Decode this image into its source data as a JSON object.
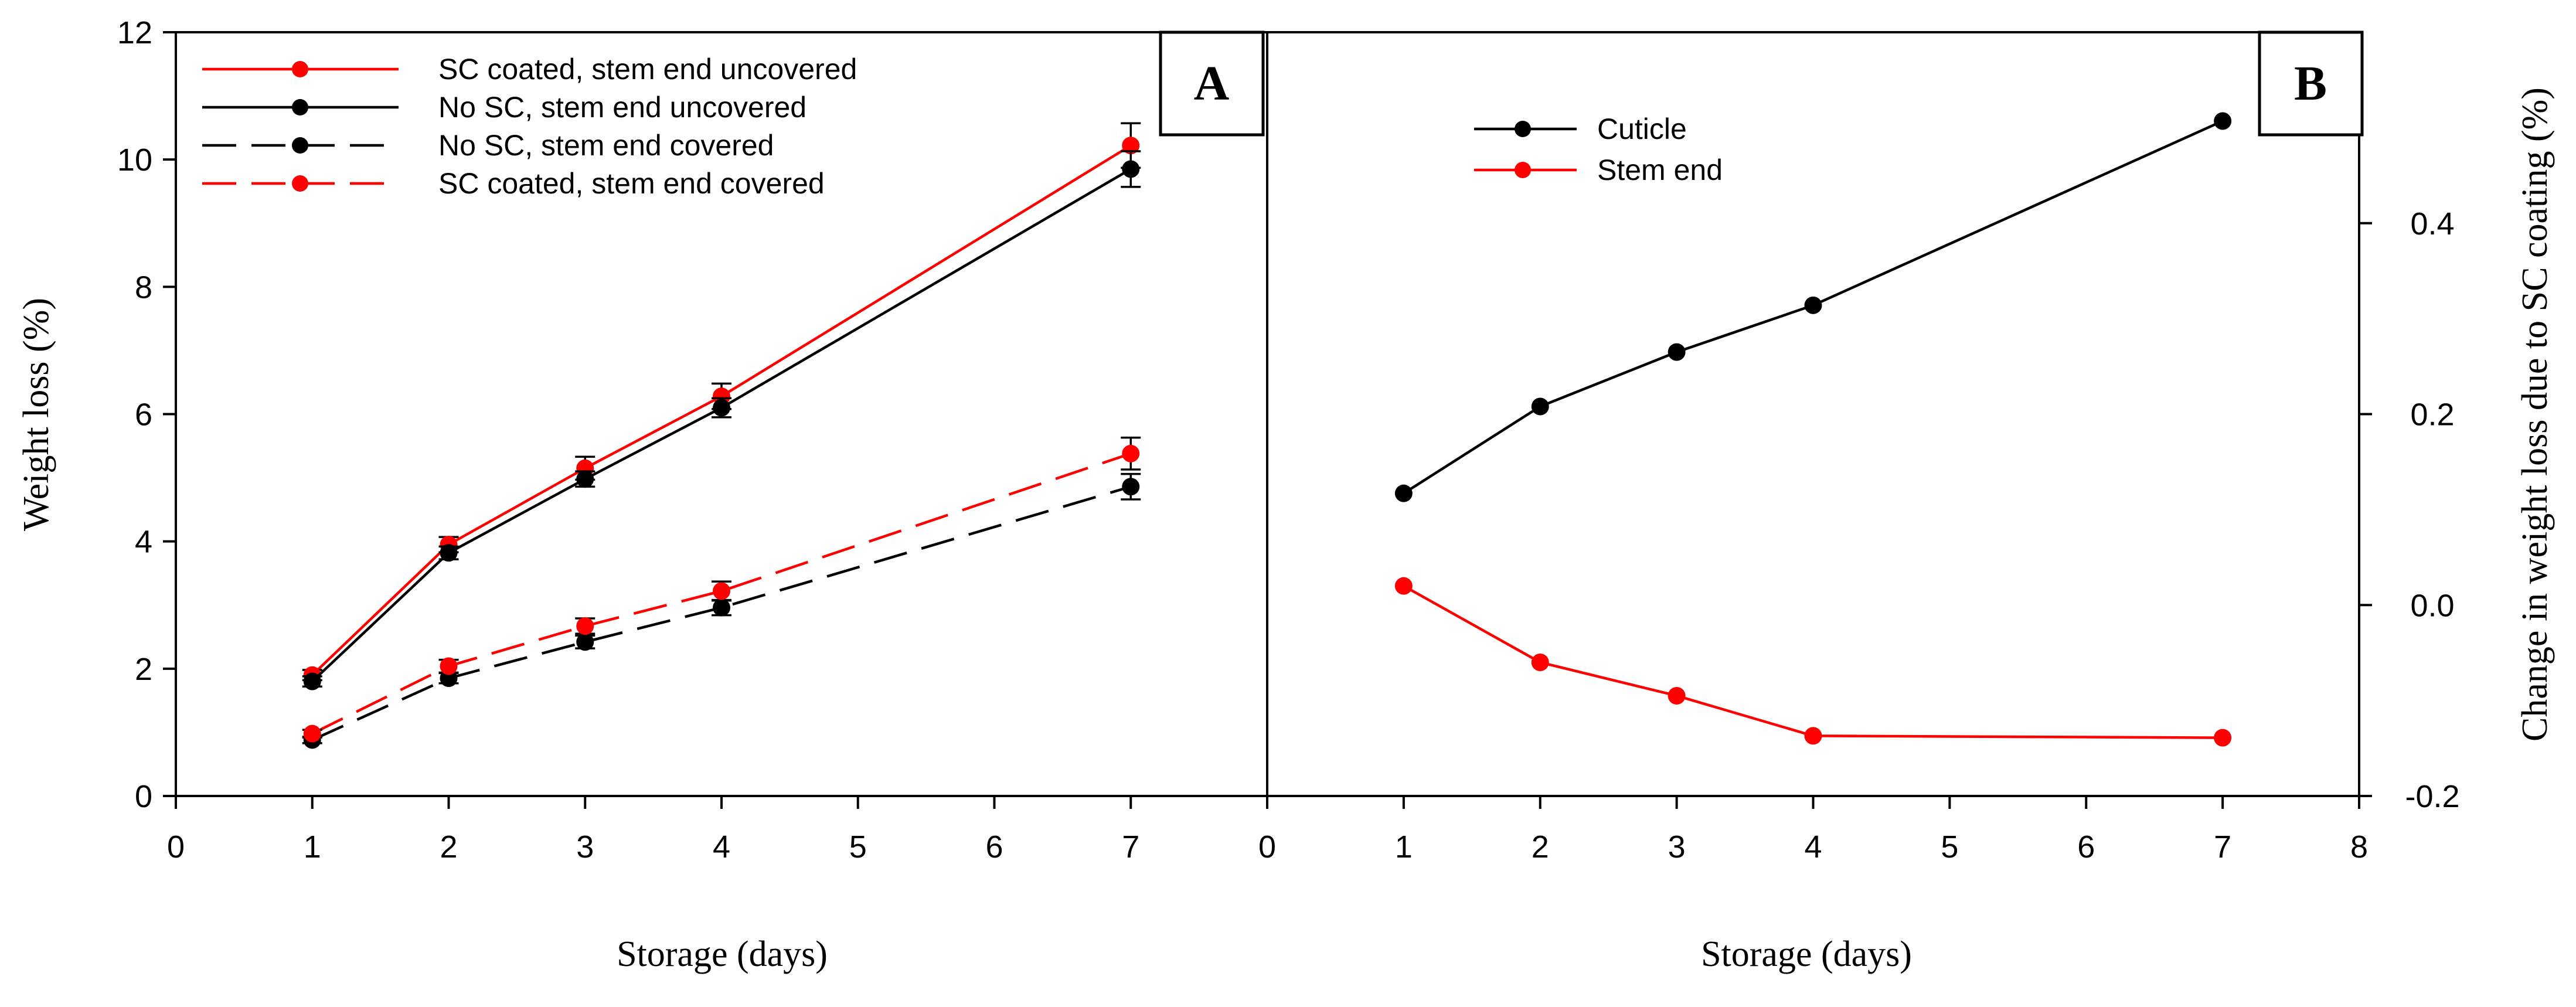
{
  "chart_data": [
    {
      "panel": "A",
      "type": "line",
      "xlabel": "Storage (days)",
      "ylabel": "Weight loss (%)",
      "xlim": [
        0,
        8
      ],
      "ylim": [
        0,
        12
      ],
      "x_ticks": [
        "0",
        "1",
        "2",
        "3",
        "4",
        "5",
        "6",
        "7"
      ],
      "y_ticks": [
        "0",
        "2",
        "4",
        "6",
        "8",
        "10",
        "12"
      ],
      "grid": false,
      "legend": "top-left",
      "series": [
        {
          "name": "SC coated, stem end uncovered",
          "color": "#ff0000",
          "dashed": false,
          "x": [
            1,
            2,
            3,
            4,
            7
          ],
          "values": [
            1.9,
            3.95,
            5.15,
            6.28,
            10.22
          ],
          "errors": [
            0.08,
            0.12,
            0.18,
            0.2,
            0.35
          ]
        },
        {
          "name": "No SC, stem end uncovered",
          "color": "#000000",
          "dashed": false,
          "x": [
            1,
            2,
            3,
            4,
            7
          ],
          "values": [
            1.8,
            3.82,
            4.98,
            6.1,
            9.85
          ],
          "errors": [
            0.08,
            0.1,
            0.12,
            0.15,
            0.28
          ]
        },
        {
          "name": "No SC, stem end covered",
          "color": "#000000",
          "dashed": true,
          "x": [
            1,
            2,
            3,
            4,
            7
          ],
          "values": [
            0.88,
            1.85,
            2.42,
            2.96,
            4.86
          ],
          "errors": [
            0.05,
            0.08,
            0.1,
            0.12,
            0.2
          ]
        },
        {
          "name": "SC coated, stem end covered",
          "color": "#ff0000",
          "dashed": true,
          "x": [
            1,
            2,
            3,
            4,
            7
          ],
          "values": [
            0.98,
            2.04,
            2.67,
            3.22,
            5.38
          ],
          "errors": [
            0.06,
            0.1,
            0.12,
            0.15,
            0.25
          ]
        }
      ]
    },
    {
      "panel": "B",
      "type": "line",
      "xlabel": "Storage (days)",
      "ylabel": "Change in weight loss due to SC coating (%)",
      "xlim": [
        0,
        8
      ],
      "ylim": [
        -0.2,
        0.6
      ],
      "x_ticks": [
        "0",
        "1",
        "2",
        "3",
        "4",
        "5",
        "6",
        "7",
        "8"
      ],
      "y_ticks": [
        "-0.2",
        "0.0",
        "0.2",
        "0.4"
      ],
      "y_tick_values": [
        -0.2,
        0.0,
        0.2,
        0.4
      ],
      "grid": false,
      "legend": "top-left",
      "series": [
        {
          "name": "Cuticle",
          "color": "#000000",
          "x": [
            1,
            2,
            3,
            4,
            7
          ],
          "values": [
            0.117,
            0.208,
            0.265,
            0.314,
            0.507
          ]
        },
        {
          "name": "Stem end",
          "color": "#ff0000",
          "x": [
            1,
            2,
            3,
            4,
            7
          ],
          "values": [
            0.02,
            -0.06,
            -0.095,
            -0.137,
            -0.139
          ]
        }
      ]
    }
  ]
}
